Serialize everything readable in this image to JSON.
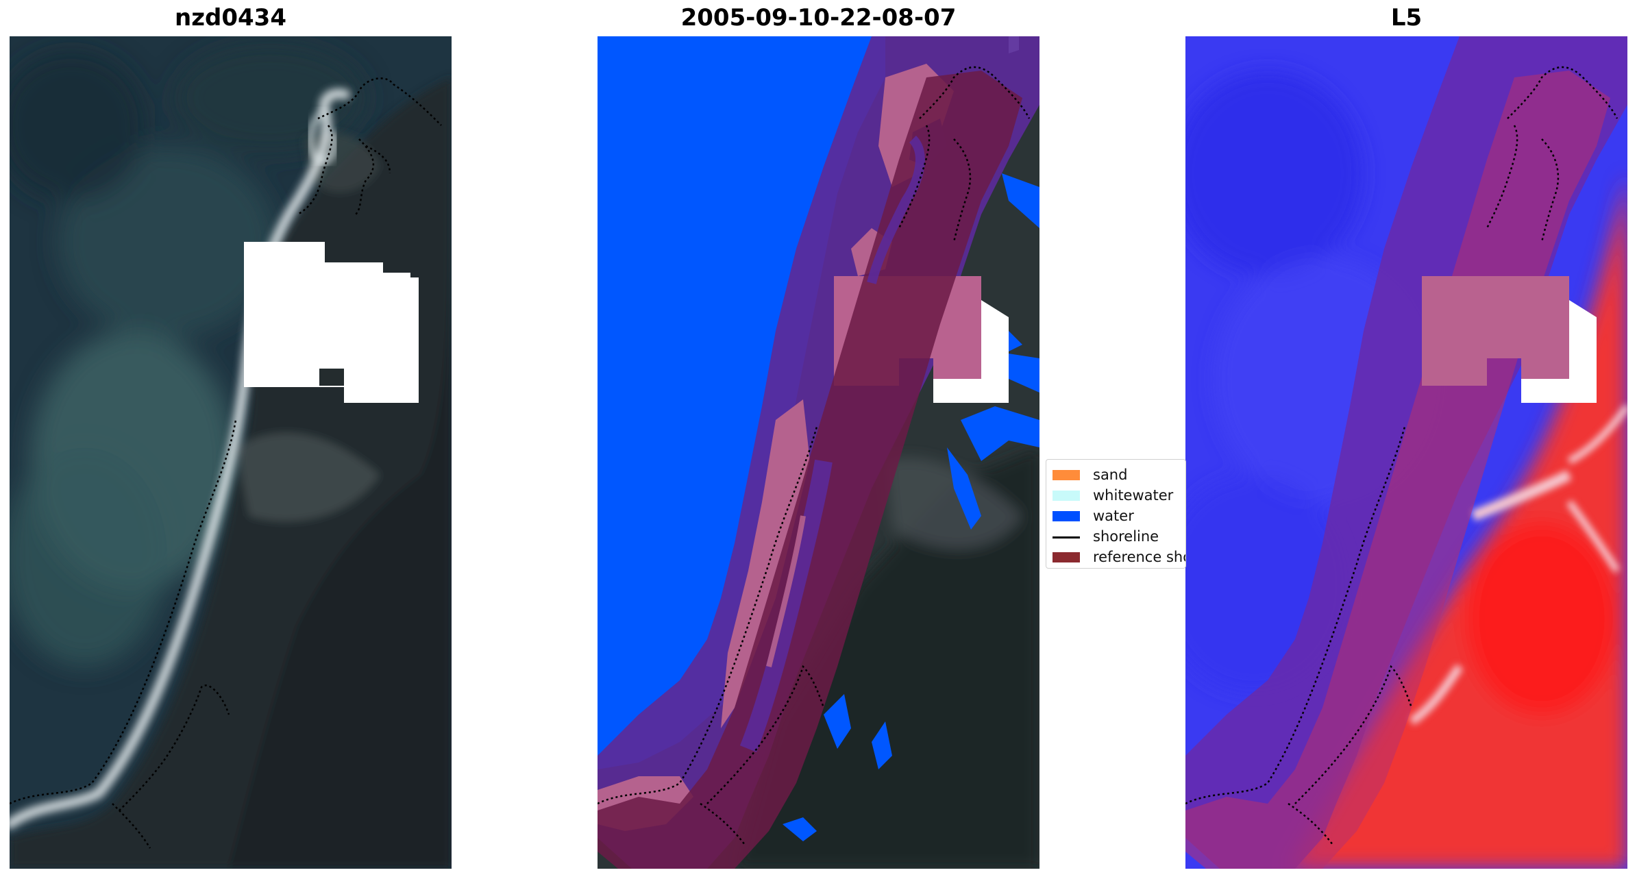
{
  "titles": {
    "site": "nzd0434",
    "date": "2005-09-10-22-08-07",
    "satellite": "L5"
  },
  "legend": {
    "items": [
      {
        "label": "sand",
        "color": "#ff8c3a",
        "kind": "patch"
      },
      {
        "label": "whitewater",
        "color": "#c8fafa",
        "kind": "patch"
      },
      {
        "label": "water",
        "color": "#0050ff",
        "kind": "patch"
      },
      {
        "label": "shoreline",
        "color": "#000000",
        "kind": "line"
      },
      {
        "label": "reference shoreline buffer",
        "color": "#8b2a2f",
        "kind": "patch"
      }
    ]
  },
  "colors": {
    "sea_dark": "#1c3340",
    "sea_mid": "#2c4a55",
    "land_dark": "#1f2628",
    "surf_white": "#e8eef0",
    "cloud_mask": "#ffffff",
    "class_water": "#0057ff",
    "buffer_purple": "#5a2a9a",
    "buffer_pink": "#b9628f",
    "buffer_maroon": "#6a1b45",
    "index_blue": "#3a3af0",
    "index_red": "#f03a3a"
  }
}
